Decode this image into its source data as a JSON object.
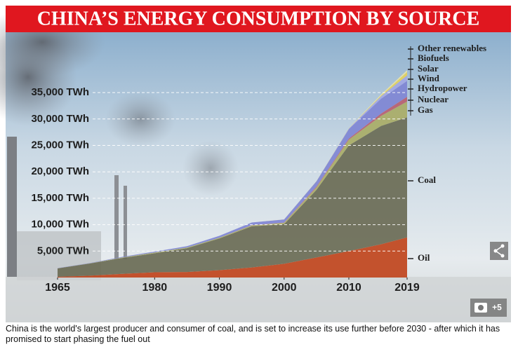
{
  "chart_data": {
    "type": "stacked_area",
    "title": "CHINA’S ENERGY CONSUMPTION BY SOURCE",
    "x": [
      1965,
      1970,
      1975,
      1980,
      1985,
      1990,
      1995,
      2000,
      2005,
      2010,
      2015,
      2019
    ],
    "xlim": [
      1965,
      2019
    ],
    "xticks": [
      1965,
      1980,
      1990,
      2000,
      2010,
      2019
    ],
    "ylim": [
      0,
      40000
    ],
    "yticks": [
      {
        "value": 5000,
        "label": "5,000 TWh"
      },
      {
        "value": 10000,
        "label": "10,000 TWh"
      },
      {
        "value": 15000,
        "label": "15,000 TWh"
      },
      {
        "value": 20000,
        "label": "20,000 TWh"
      },
      {
        "value": 25000,
        "label": "25,000 TWh"
      },
      {
        "value": 30000,
        "label": "30,000 TWh"
      },
      {
        "value": 35000,
        "label": "35,000 TWh"
      }
    ],
    "grid": true,
    "series": [
      {
        "name": "Oil",
        "color": "#c0441c",
        "values": [
          130,
          350,
          700,
          1000,
          1050,
          1400,
          1900,
          2600,
          3800,
          5000,
          6300,
          7600
        ]
      },
      {
        "name": "Coal",
        "color": "#6a6b55",
        "values": [
          1600,
          2300,
          3000,
          3600,
          4500,
          6000,
          7800,
          7500,
          12800,
          20000,
          22400,
          22700
        ]
      },
      {
        "name": "Gas",
        "color": "#a9ad66",
        "values": [
          10,
          30,
          90,
          140,
          130,
          150,
          180,
          250,
          480,
          1100,
          1900,
          3000
        ]
      },
      {
        "name": "Nuclear",
        "color": "#b86070",
        "values": [
          0,
          0,
          0,
          0,
          0,
          0,
          35,
          45,
          140,
          190,
          450,
          900
        ]
      },
      {
        "name": "Hydropower",
        "color": "#7f86d4",
        "values": [
          40,
          60,
          130,
          160,
          250,
          340,
          500,
          600,
          1000,
          1800,
          2800,
          3000
        ]
      },
      {
        "name": "Wind",
        "color": "#a3a8e4",
        "values": [
          0,
          0,
          0,
          0,
          0,
          0,
          0,
          0,
          5,
          115,
          470,
          1050
        ]
      },
      {
        "name": "Solar",
        "color": "#e3d25a",
        "values": [
          0,
          0,
          0,
          0,
          0,
          0,
          0,
          0,
          0,
          2,
          110,
          600
        ]
      },
      {
        "name": "Biofuels",
        "color": "#d6c676",
        "values": [
          0,
          0,
          0,
          0,
          0,
          0,
          0,
          0,
          10,
          20,
          30,
          40
        ]
      },
      {
        "name": "Other renewables",
        "color": "#ece4a6",
        "values": [
          0,
          0,
          0,
          0,
          0,
          0,
          0,
          20,
          30,
          60,
          200,
          350
        ]
      }
    ]
  },
  "gallery_count": "+5",
  "caption": "China is the world's largest producer and consumer of coal, and is set to increase its use further before 2030 - after which it has promised to start phasing the fuel out"
}
